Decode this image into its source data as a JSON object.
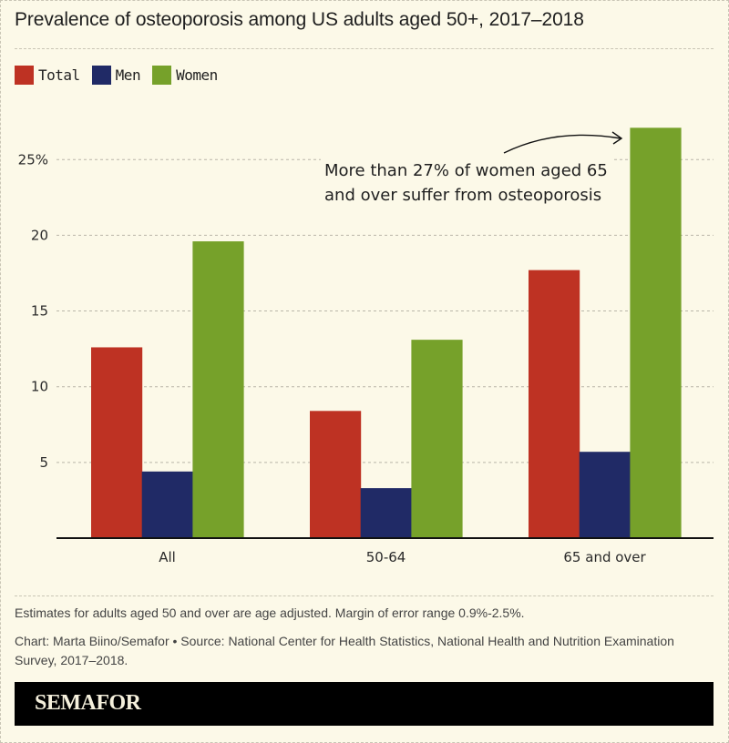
{
  "colors": {
    "total": "#be3223",
    "men": "#202a66",
    "women": "#76a12a",
    "background": "#fcf9e8",
    "grid": "#b9b6a8",
    "axis": "#111111"
  },
  "legend": [
    {
      "key": "total",
      "label": "Total"
    },
    {
      "key": "men",
      "label": "Men"
    },
    {
      "key": "women",
      "label": "Women"
    }
  ],
  "chart_data": {
    "type": "bar",
    "title": "Prevalence of osteoporosis among US adults aged 50+, 2017–2018",
    "xlabel": "",
    "ylabel": "",
    "categories": [
      "All",
      "50-64",
      "65 and over"
    ],
    "series": [
      {
        "name": "Total",
        "key": "total",
        "values": [
          12.6,
          8.4,
          17.7
        ]
      },
      {
        "name": "Men",
        "key": "men",
        "values": [
          4.4,
          3.3,
          5.7
        ]
      },
      {
        "name": "Women",
        "key": "women",
        "values": [
          19.6,
          13.1,
          27.1
        ]
      }
    ],
    "ylim": [
      0,
      28.6
    ],
    "yticks": [
      {
        "value": 5,
        "label": "5"
      },
      {
        "value": 10,
        "label": "10"
      },
      {
        "value": 15,
        "label": "15"
      },
      {
        "value": 20,
        "label": "20"
      },
      {
        "value": 25,
        "label": "25%"
      }
    ],
    "grid": true,
    "legend_position": "top-left",
    "annotation": {
      "lines": [
        "More than 27% of women aged 65",
        "and over suffer from osteoporosis"
      ],
      "points_to": {
        "category": "65 and over",
        "series": "Women"
      }
    }
  },
  "footer": {
    "note": "Estimates for adults aged 50 and over are age adjusted. Margin of error range 0.9%-2.5%.",
    "source": "Chart: Marta Biino/Semafor • Source: National Center for Health Statistics, National Health and Nutrition Examination Survey, 2017–2018.",
    "brand": "SEMAFOR"
  }
}
